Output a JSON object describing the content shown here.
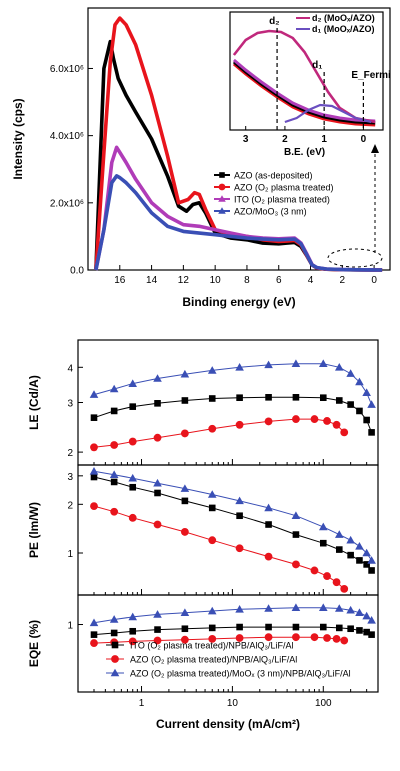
{
  "chart_data": [
    {
      "type": "line",
      "panel": "ups",
      "xlabel": "Binding energy (eV)",
      "ylabel": "Intensity (cps)",
      "xlim": [
        18,
        -1
      ],
      "ylim": [
        0,
        7800000
      ],
      "xticks": [
        16,
        14,
        12,
        10,
        8,
        6,
        4,
        2,
        0
      ],
      "yticks": [
        0,
        2000000,
        4000000,
        6000000
      ],
      "ytick_labels": [
        "0.0",
        "2.0x10⁶",
        "4.0x10⁶",
        "6.0x10⁶"
      ],
      "legend_position": "center-right",
      "series": [
        {
          "name": "AZO (as-deposited)",
          "color": "#000000",
          "marker": "square",
          "x": [
            17.5,
            17.0,
            16.6,
            16.4,
            16.1,
            15.6,
            15.0,
            14.0,
            13.0,
            12.3,
            11.8,
            11.4,
            11.0,
            10.6,
            10.0,
            9.0,
            8.0,
            7.0,
            6.0,
            5.5,
            5.0,
            4.6,
            4.2,
            3.9,
            3.6,
            3.0,
            2.0,
            1.0,
            0.0,
            -0.5
          ],
          "y": [
            0,
            6000000,
            6800000,
            6300000,
            5700000,
            5200000,
            4700000,
            3900000,
            2800000,
            1900000,
            1750000,
            1950000,
            2000000,
            1700000,
            1100000,
            950000,
            900000,
            800000,
            780000,
            800000,
            820000,
            700000,
            400000,
            150000,
            60000,
            25000,
            10000,
            5000,
            2000,
            0
          ]
        },
        {
          "name": "AZO (O₂ plasma treated)",
          "color": "#e8141c",
          "marker": "circle",
          "x": [
            17.5,
            17.0,
            16.6,
            16.3,
            16.0,
            15.6,
            15.0,
            14.0,
            13.0,
            12.3,
            11.7,
            11.3,
            11.0,
            10.6,
            10.0,
            9.0,
            8.0,
            7.0,
            6.0,
            5.5,
            5.0,
            4.6,
            4.2,
            3.9,
            3.6,
            3.0,
            2.0,
            1.0,
            0.0,
            -0.5
          ],
          "y": [
            0,
            3500000,
            6200000,
            7300000,
            7500000,
            7300000,
            6700000,
            5200000,
            3400000,
            2000000,
            2100000,
            2300000,
            2250000,
            1800000,
            1200000,
            1050000,
            1000000,
            900000,
            850000,
            860000,
            880000,
            750000,
            400000,
            150000,
            60000,
            25000,
            10000,
            5000,
            2000,
            0
          ]
        },
        {
          "name": "ITO (O₂ plasma treated)",
          "color": "#b03cb8",
          "marker": "triangle",
          "x": [
            17.5,
            17.0,
            16.5,
            16.2,
            16.0,
            15.6,
            15.0,
            14.0,
            13.0,
            12.0,
            11.0,
            10.0,
            9.0,
            8.0,
            7.0,
            6.0,
            5.0,
            4.6,
            4.2,
            3.9,
            3.6,
            3.0,
            2.0,
            1.0,
            0.0,
            -0.5
          ],
          "y": [
            0,
            1200000,
            3200000,
            3650000,
            3500000,
            3200000,
            2700000,
            2000000,
            1600000,
            1350000,
            1300000,
            1200000,
            1100000,
            1000000,
            950000,
            930000,
            950000,
            800000,
            450000,
            160000,
            70000,
            30000,
            12000,
            6000,
            2000,
            0
          ]
        },
        {
          "name": "AZO/MoO₃ (3 nm)",
          "color": "#3a4fb5",
          "marker": "triangle",
          "x": [
            17.5,
            17.0,
            16.5,
            16.2,
            16.0,
            15.6,
            15.0,
            14.0,
            13.0,
            12.0,
            11.0,
            10.0,
            9.0,
            8.0,
            7.0,
            6.0,
            5.0,
            4.6,
            4.2,
            3.9,
            3.6,
            3.0,
            2.0,
            1.0,
            0.0,
            -0.5
          ],
          "y": [
            0,
            1200000,
            2600000,
            2800000,
            2750000,
            2600000,
            2300000,
            1700000,
            1300000,
            1150000,
            1100000,
            1050000,
            1000000,
            950000,
            920000,
            900000,
            920000,
            780000,
            420000,
            150000,
            70000,
            30000,
            12000,
            6000,
            2000,
            0
          ]
        }
      ],
      "inset": {
        "xlabel": "B.E. (eV)",
        "xlim": [
          3.4,
          -0.5
        ],
        "xticks": [
          3,
          2,
          1,
          0
        ],
        "annotations": [
          "d₂",
          "d₁",
          "E_Fermi"
        ],
        "legend": [
          "d₂ (MoOₓ/AZO)",
          "d₁ (MoOₓ/AZO)"
        ],
        "legend_colors": [
          "#c0287c",
          "#6a4fc0"
        ],
        "markers": [
          {
            "label": "d₂",
            "x": 2.2
          },
          {
            "label": "d₁",
            "x": 1.0
          },
          {
            "label": "E_Fermi",
            "x": 0.0
          }
        ]
      }
    },
    {
      "type": "line",
      "panel": "LE",
      "ylabel": "LE (Cd/A)",
      "xscale": "log",
      "yscale": "log",
      "xlim": [
        0.2,
        400
      ],
      "ylim": [
        1.8,
        5.0
      ],
      "yticks": [
        2,
        3,
        4
      ],
      "series": [
        {
          "name": "ITO (O₂ plasma treated)/NPB/AlQ₃/LiF/Al",
          "color": "#000000",
          "marker": "square",
          "x": [
            0.3,
            0.5,
            0.8,
            1.5,
            3,
            6,
            12,
            25,
            50,
            100,
            150,
            200,
            250,
            300,
            340
          ],
          "y": [
            2.65,
            2.8,
            2.9,
            2.98,
            3.05,
            3.1,
            3.12,
            3.13,
            3.13,
            3.12,
            3.05,
            2.95,
            2.8,
            2.6,
            2.35
          ]
        },
        {
          "name": "AZO (O₂ plasma treated)/NPB/AlQ₃/LiF/Al",
          "color": "#e8141c",
          "marker": "circle",
          "x": [
            0.3,
            0.5,
            0.8,
            1.5,
            3,
            6,
            12,
            25,
            50,
            80,
            110,
            140,
            170
          ],
          "y": [
            2.08,
            2.12,
            2.18,
            2.25,
            2.33,
            2.42,
            2.5,
            2.57,
            2.62,
            2.62,
            2.58,
            2.5,
            2.35
          ]
        },
        {
          "name": "AZO (O₂ plasma treated)/MoOₓ (3 nm)/NPB/AlQ₃/LiF/Al",
          "color": "#3a4fb5",
          "marker": "triangle",
          "x": [
            0.3,
            0.5,
            0.8,
            1.5,
            3,
            6,
            12,
            25,
            50,
            100,
            150,
            200,
            250,
            300,
            340
          ],
          "y": [
            3.2,
            3.35,
            3.5,
            3.65,
            3.78,
            3.9,
            4.0,
            4.08,
            4.12,
            4.12,
            4.0,
            3.8,
            3.55,
            3.25,
            2.95
          ]
        }
      ]
    },
    {
      "type": "line",
      "panel": "PE",
      "ylabel": "PE (lm/W)",
      "xscale": "log",
      "yscale": "log",
      "xlim": [
        0.2,
        400
      ],
      "ylim": [
        0.55,
        3.5
      ],
      "yticks": [
        1,
        2,
        3
      ],
      "series": [
        {
          "name": "ITO (O₂ plasma treated)/NPB/AlQ₃/LiF/Al",
          "color": "#000000",
          "marker": "square",
          "x": [
            0.3,
            0.5,
            0.8,
            1.5,
            3,
            6,
            12,
            25,
            50,
            100,
            150,
            200,
            250,
            300,
            340
          ],
          "y": [
            2.95,
            2.75,
            2.55,
            2.35,
            2.1,
            1.9,
            1.7,
            1.5,
            1.3,
            1.15,
            1.05,
            0.97,
            0.9,
            0.85,
            0.78
          ]
        },
        {
          "name": "AZO (O₂ plasma treated)/NPB/AlQ₃/LiF/Al",
          "color": "#e8141c",
          "marker": "circle",
          "x": [
            0.3,
            0.5,
            0.8,
            1.5,
            3,
            6,
            12,
            25,
            50,
            80,
            110,
            140,
            170
          ],
          "y": [
            1.95,
            1.8,
            1.65,
            1.5,
            1.35,
            1.2,
            1.07,
            0.95,
            0.85,
            0.78,
            0.72,
            0.66,
            0.6
          ]
        },
        {
          "name": "AZO (O₂ plasma treated)/MoOₓ (3 nm)/NPB/AlQ₃/LiF/Al",
          "color": "#3a4fb5",
          "marker": "triangle",
          "x": [
            0.3,
            0.5,
            0.8,
            1.5,
            3,
            6,
            12,
            25,
            50,
            100,
            150,
            200,
            250,
            300,
            340
          ],
          "y": [
            3.2,
            3.05,
            2.9,
            2.7,
            2.5,
            2.3,
            2.1,
            1.9,
            1.7,
            1.45,
            1.3,
            1.2,
            1.1,
            1.0,
            0.9
          ]
        }
      ]
    },
    {
      "type": "line",
      "panel": "EQE",
      "ylabel": "EQE (%)",
      "xlabel": "Current density (mA/cm²)",
      "xscale": "log",
      "xlim": [
        0.2,
        400
      ],
      "ylim": [
        0.2,
        1.35
      ],
      "yticks": [
        1
      ],
      "xticks": [
        1,
        10,
        100
      ],
      "legend_position": "lower-right",
      "series": [
        {
          "name": "ITO (O₂ plasma treated)/NPB/AlQ₃/LiF/Al",
          "color": "#000000",
          "marker": "square",
          "x": [
            0.3,
            0.5,
            0.8,
            1.5,
            3,
            6,
            12,
            25,
            50,
            100,
            150,
            200,
            250,
            300,
            340
          ],
          "y": [
            0.88,
            0.9,
            0.92,
            0.94,
            0.95,
            0.96,
            0.97,
            0.97,
            0.97,
            0.97,
            0.96,
            0.95,
            0.93,
            0.91,
            0.88
          ]
        },
        {
          "name": "AZO (O₂ plasma treated)/NPB/AlQ₃/LiF/Al",
          "color": "#e8141c",
          "marker": "circle",
          "x": [
            0.3,
            0.5,
            0.8,
            1.5,
            3,
            6,
            12,
            25,
            50,
            80,
            110,
            140,
            170
          ],
          "y": [
            0.78,
            0.79,
            0.8,
            0.81,
            0.82,
            0.83,
            0.84,
            0.85,
            0.85,
            0.85,
            0.84,
            0.83,
            0.81
          ]
        },
        {
          "name": "AZO (O₂ plasma treated)/MoOₓ (3 nm)/NPB/AlQ₃/LiF/Al",
          "color": "#3a4fb5",
          "marker": "triangle",
          "x": [
            0.3,
            0.5,
            0.8,
            1.5,
            3,
            6,
            12,
            25,
            50,
            100,
            150,
            200,
            250,
            300,
            340
          ],
          "y": [
            1.02,
            1.06,
            1.09,
            1.12,
            1.14,
            1.16,
            1.18,
            1.19,
            1.2,
            1.2,
            1.19,
            1.17,
            1.14,
            1.1,
            1.05
          ]
        }
      ]
    }
  ]
}
